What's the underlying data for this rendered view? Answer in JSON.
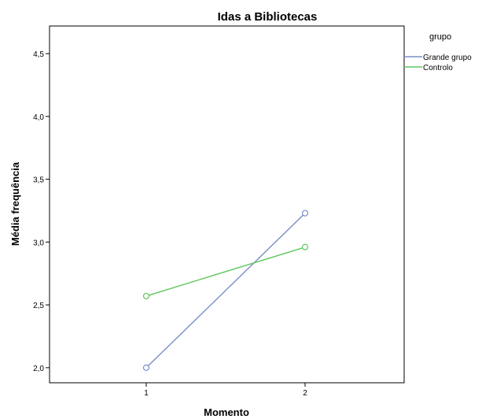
{
  "chart_data": {
    "type": "line",
    "title": "Idas a Bibliotecas",
    "xlabel": "Momento",
    "ylabel": "Média frequência",
    "categories": [
      "1",
      "2"
    ],
    "yticks": [
      "2,0",
      "2,5",
      "3,0",
      "3,5",
      "4,0",
      "4,5"
    ],
    "ylim": [
      1.88,
      4.72
    ],
    "grid": false,
    "legend": {
      "title": "grupo",
      "placement": "right"
    },
    "series": [
      {
        "name": "Grande grupo",
        "color": "#7b8fc9",
        "values": [
          2.0,
          3.23
        ]
      },
      {
        "name": "Controlo",
        "color": "#5ec65e",
        "values": [
          2.57,
          2.96
        ]
      }
    ]
  }
}
